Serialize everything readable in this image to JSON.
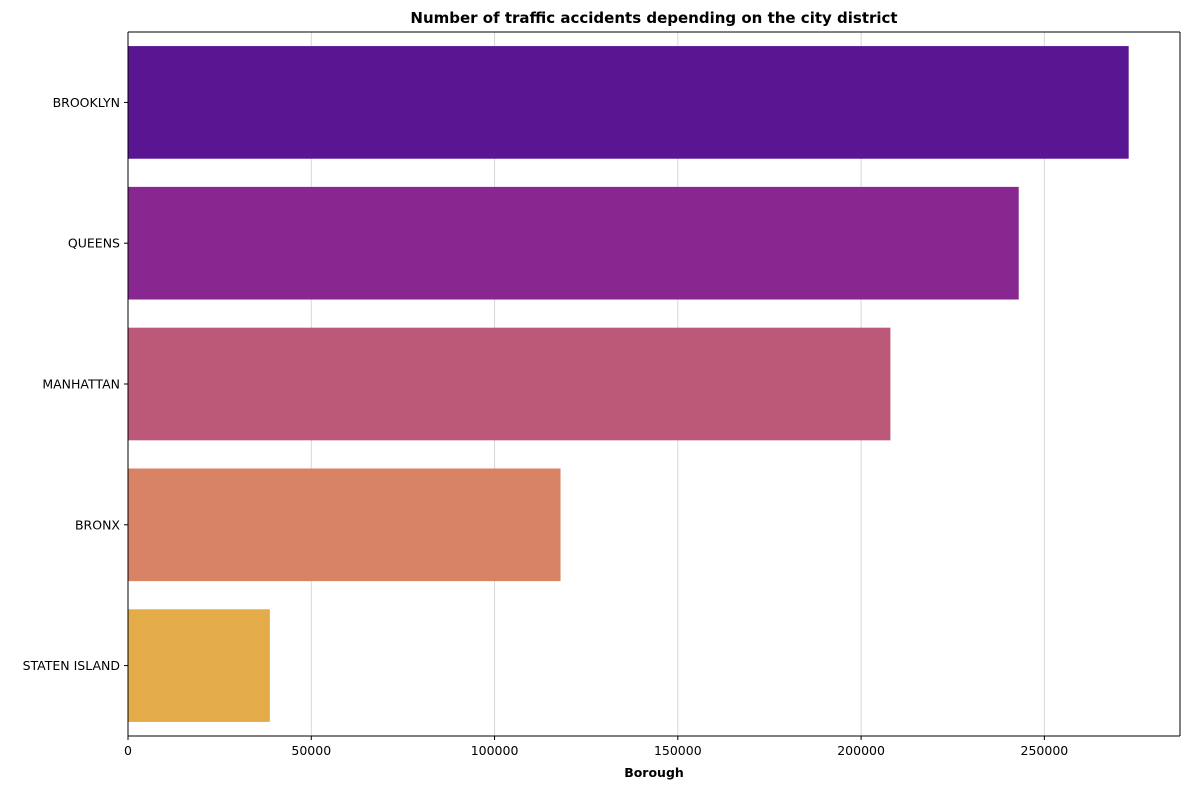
{
  "chart_data": {
    "type": "bar",
    "orientation": "horizontal",
    "title": "Number of traffic accidents depending on the city district",
    "xlabel": "Borough",
    "ylabel": "",
    "categories": [
      "BROOKLYN",
      "QUEENS",
      "MANHATTAN",
      "BRONX",
      "STATEN ISLAND"
    ],
    "values": [
      273000,
      243000,
      208000,
      118000,
      38700
    ],
    "colors": [
      "#5a1692",
      "#88278f",
      "#bc5978",
      "#d88266",
      "#e3ac48"
    ],
    "xlim": [
      0,
      287000
    ],
    "xticks": [
      0,
      50000,
      100000,
      150000,
      200000,
      250000
    ],
    "xtick_labels": [
      "0",
      "50000",
      "100000",
      "150000",
      "200000",
      "250000"
    ],
    "grid": "vertical"
  }
}
